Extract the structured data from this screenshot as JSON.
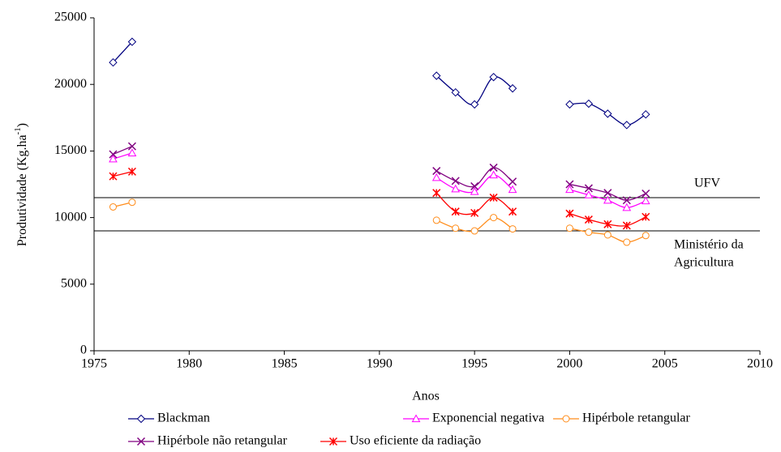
{
  "chart_data": {
    "type": "line",
    "x_label": "Anos",
    "y_label": {
      "main": "Produtividade (Kg.ha",
      "superscript": "-1",
      "suffix": ")"
    },
    "x": [
      1976,
      1977,
      1993,
      1994,
      1995,
      1996,
      1997,
      2000,
      2001,
      2002,
      2003,
      2004
    ],
    "series": [
      {
        "name": "Blackman",
        "color": "#000080",
        "marker": "diamond",
        "values": [
          21650,
          23200,
          20650,
          19400,
          18500,
          20550,
          19700,
          18500,
          18550,
          17800,
          16950,
          17750
        ]
      },
      {
        "name": "Exponencial negativa",
        "color": "#ff00ff",
        "marker": "triangle",
        "values": [
          14400,
          14850,
          13000,
          12150,
          11950,
          13200,
          12100,
          12100,
          11700,
          11300,
          10750,
          11250
        ]
      },
      {
        "name": "Hipérbole retangular",
        "color": "#ff8c1a",
        "marker": "circle",
        "values": [
          10800,
          11150,
          9800,
          9200,
          9000,
          10000,
          9150,
          9200,
          8900,
          8700,
          8150,
          8650
        ]
      },
      {
        "name": "Hipérbole não retangular",
        "color": "#800080",
        "marker": "x",
        "values": [
          14750,
          15350,
          13500,
          12750,
          12350,
          13750,
          12700,
          12500,
          12200,
          11850,
          11300,
          11800
        ]
      },
      {
        "name": "Uso eficiente da radiação",
        "color": "#ff0000",
        "marker": "asterisk",
        "values": [
          13100,
          13450,
          11850,
          10450,
          10350,
          11500,
          10450,
          10300,
          9850,
          9500,
          9400,
          10050
        ]
      }
    ],
    "reference_lines": [
      {
        "value": 11500,
        "label": [
          "UFV"
        ]
      },
      {
        "value": 9000,
        "label": [
          "Ministério da",
          "Agricultura"
        ]
      }
    ],
    "xlim": [
      1975,
      2010
    ],
    "xticks": [
      1975,
      1980,
      1985,
      1990,
      1995,
      2000,
      2005,
      2010
    ],
    "ylim": [
      0,
      25000
    ],
    "yticks": [
      0,
      5000,
      10000,
      15000,
      20000,
      25000
    ],
    "grid": false,
    "legend": "bottom"
  }
}
